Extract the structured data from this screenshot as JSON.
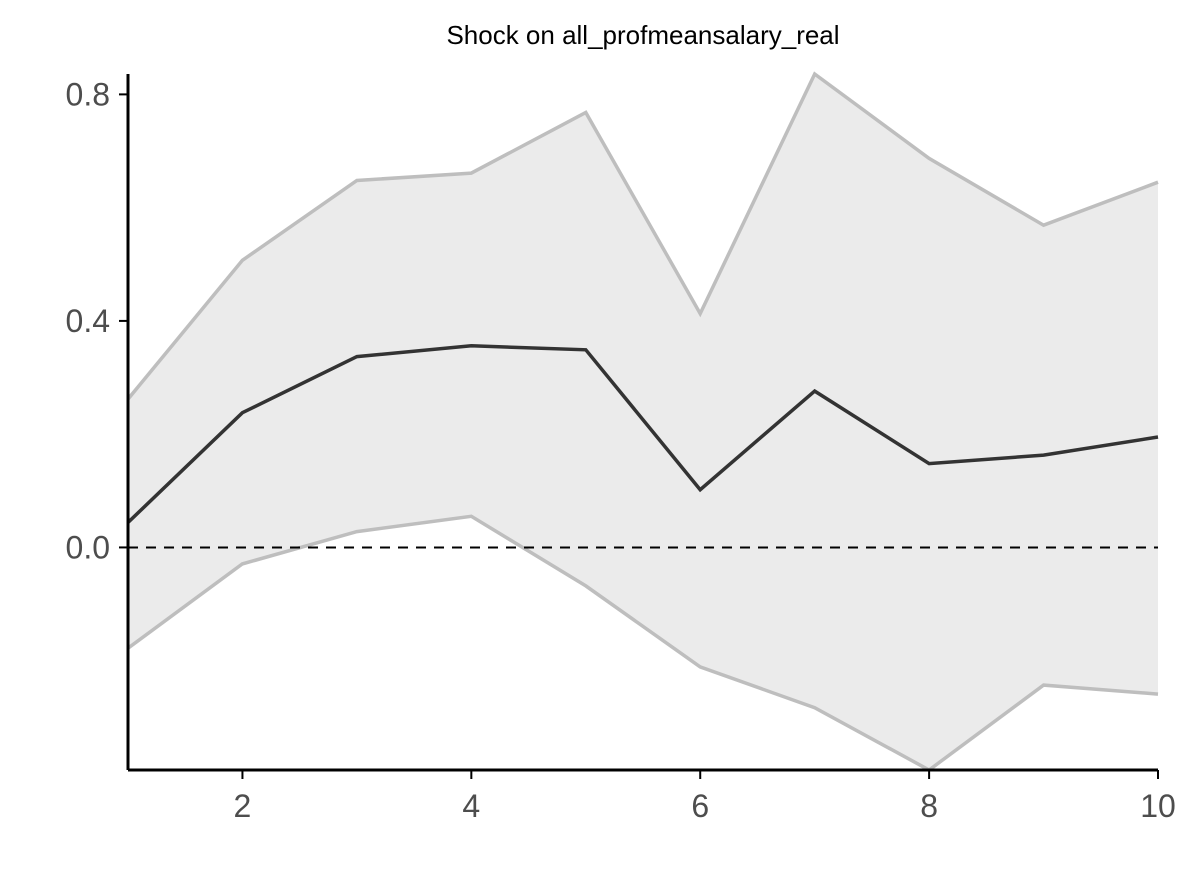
{
  "chart_data": {
    "type": "line",
    "title": "Shock on all_profmeansalary_real",
    "xlabel": "",
    "ylabel": "",
    "x": [
      1,
      2,
      3,
      4,
      5,
      6,
      7,
      8,
      9,
      10
    ],
    "series": [
      {
        "values": [
          0.044,
          0.238,
          0.337,
          0.356,
          0.349,
          0.102,
          0.276,
          0.148,
          0.163,
          0.195
        ]
      }
    ],
    "band": {
      "upper": [
        0.262,
        0.507,
        0.648,
        0.661,
        0.768,
        0.413,
        0.836,
        0.687,
        0.569,
        0.645
      ],
      "lower": [
        -0.178,
        -0.029,
        0.028,
        0.055,
        -0.068,
        -0.211,
        -0.283,
        -0.393,
        -0.243,
        -0.259
      ]
    },
    "zero_line": 0,
    "xticks": [
      2,
      4,
      6,
      8,
      10
    ],
    "yticks": [
      0.0,
      0.4,
      0.8
    ],
    "ytick_labels": [
      "0.0",
      "0.4",
      "0.8"
    ],
    "xlim": [
      1,
      10
    ],
    "ylim": [
      -0.393,
      0.836
    ],
    "grid": false,
    "colors": {
      "line": "#333333",
      "band_fill": "#ebebeb",
      "band_edge": "#bebebe",
      "zero_line": "#000000",
      "axis": "#000000",
      "tick_label": "#4d4d4d"
    }
  }
}
